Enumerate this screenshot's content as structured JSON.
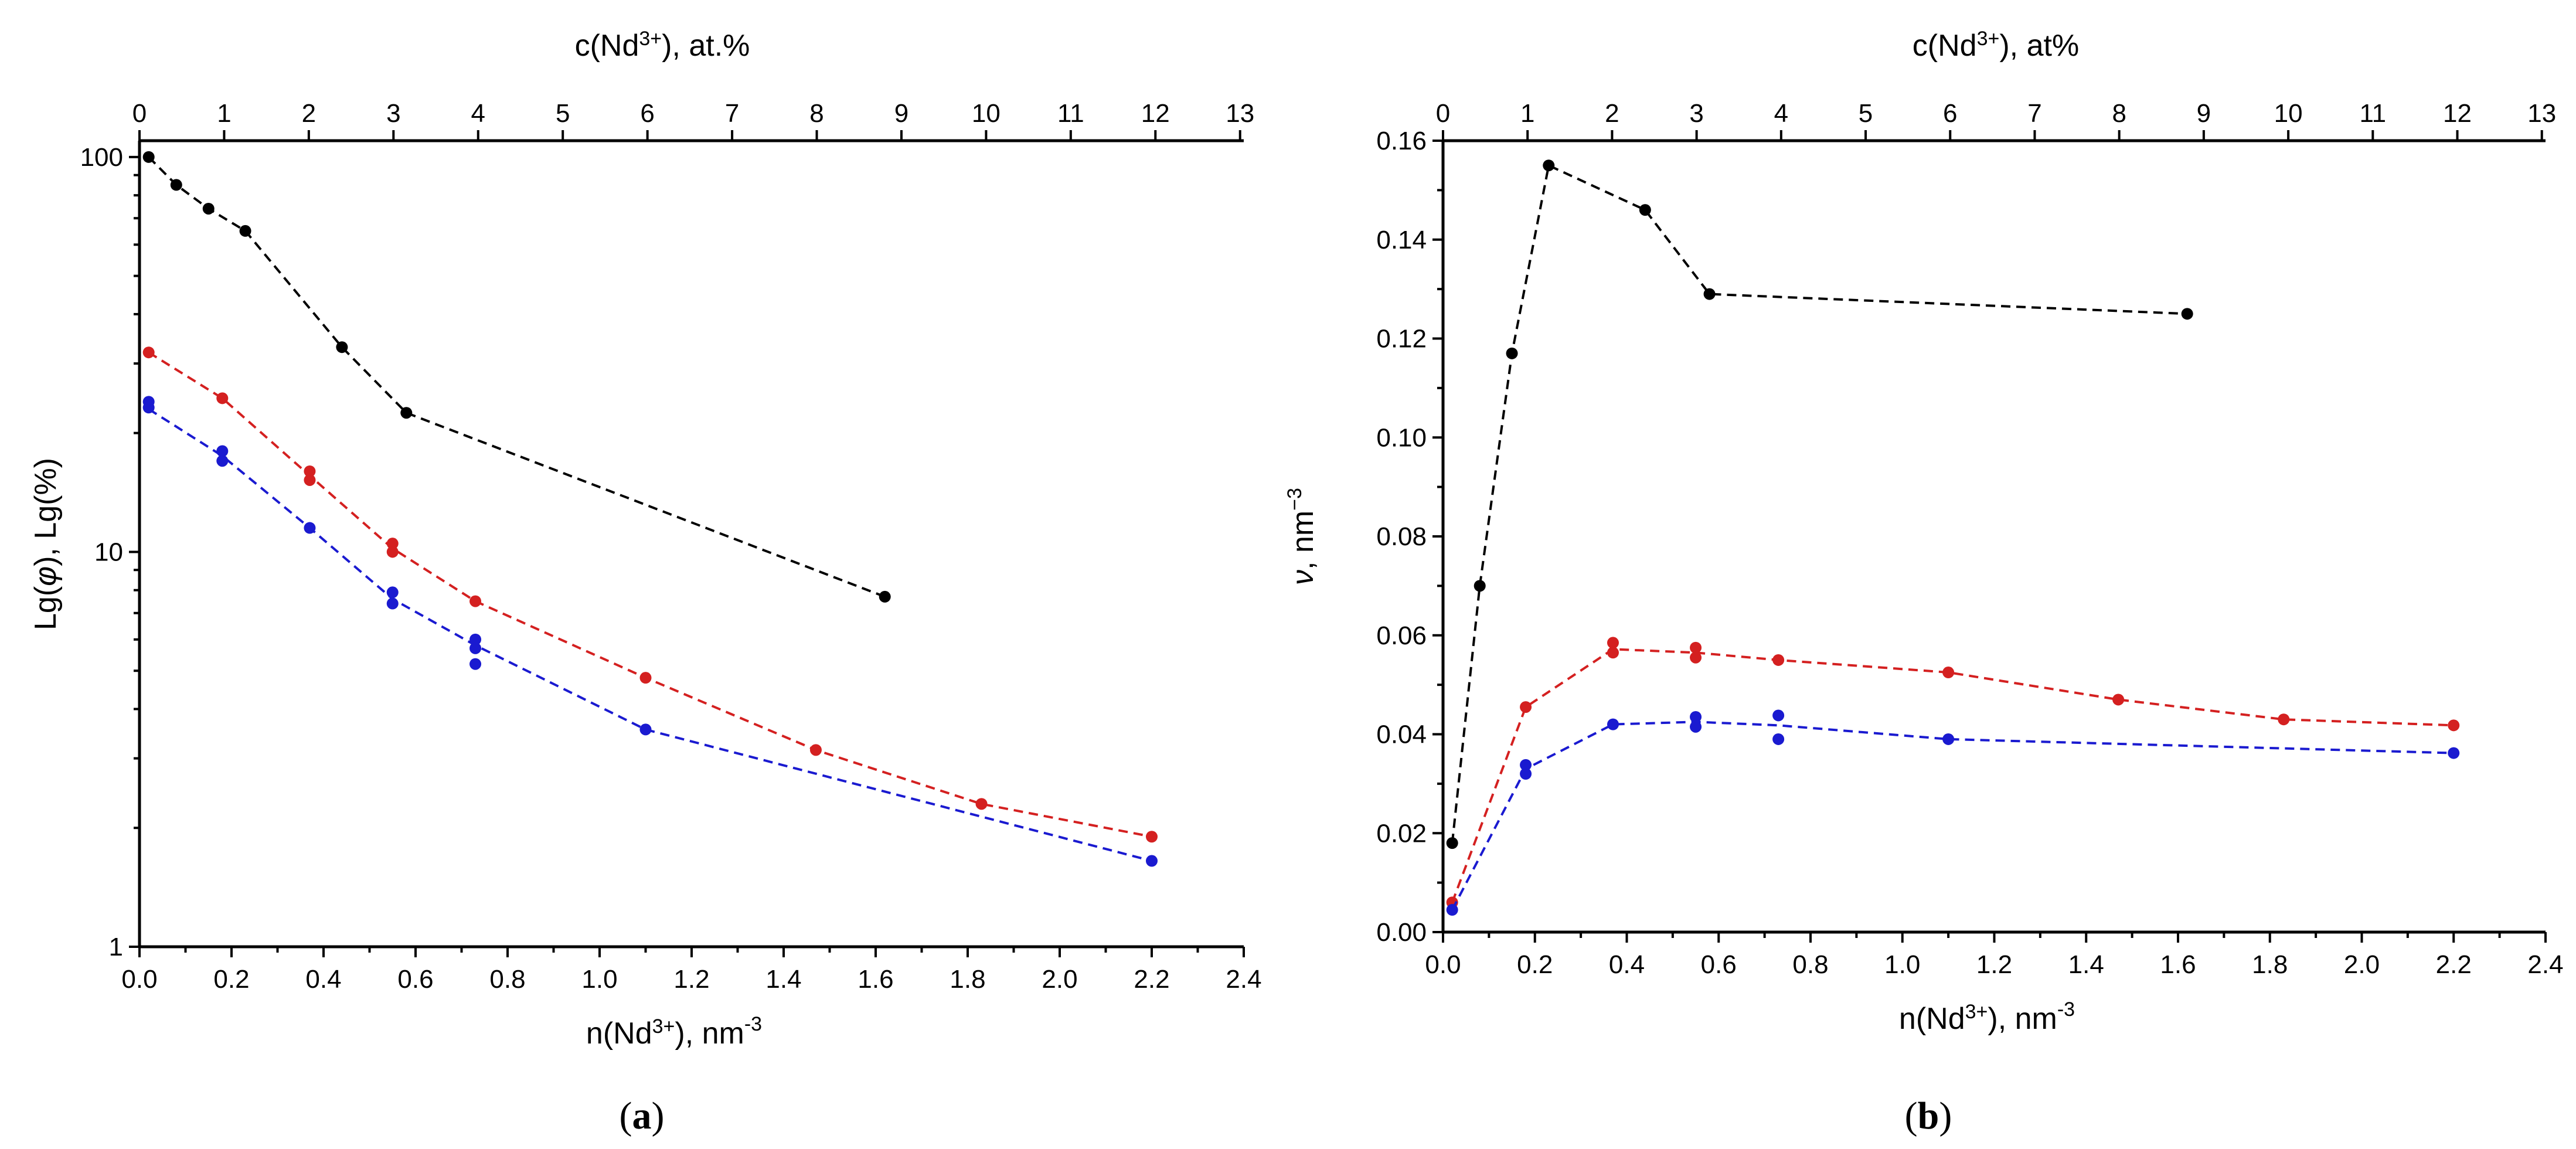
{
  "chart_data": [
    {
      "type": "scatter",
      "panel_label": "(a)",
      "panel_letter": "a",
      "xlabel": "n(Nd3+), nm-3",
      "xlabel_parts": {
        "main": "n(Nd",
        "sup": "3+",
        "tail": "), nm",
        "exp": "-3"
      },
      "ylabel": "Lg(φ), Lg(%)",
      "ylabel_parts": {
        "pre": "Lg(",
        "phi": "φ",
        "post": "), Lg(%)"
      },
      "top_label": "c(Nd3+), at.%",
      "top_label_parts": {
        "main": "c(Nd",
        "sup": "3+",
        "tail": "), at.%"
      },
      "yscale": "log",
      "xlim": [
        0,
        2.4
      ],
      "ylim": [
        1,
        110
      ],
      "x_ticks": [
        0.0,
        0.2,
        0.4,
        0.6,
        0.8,
        1.0,
        1.2,
        1.4,
        1.6,
        1.8,
        2.0,
        2.2,
        2.4
      ],
      "x_tick_labels": [
        "0.0",
        "0.2",
        "0.4",
        "0.6",
        "0.8",
        "1.0",
        "1.2",
        "1.4",
        "1.6",
        "1.8",
        "2.0",
        "2.2",
        "2.4"
      ],
      "y_ticks": [
        1,
        10,
        100
      ],
      "y_tick_labels": [
        "1",
        "10",
        "100"
      ],
      "top_ticks": [
        0,
        1,
        2,
        3,
        4,
        5,
        6,
        7,
        8,
        9,
        10,
        11,
        12,
        13
      ],
      "top_tick_labels": [
        "0",
        "1",
        "2",
        "3",
        "4",
        "5",
        "6",
        "7",
        "8",
        "9",
        "10",
        "11",
        "12",
        "13"
      ],
      "top_axis_factor": 0.184,
      "series": [
        {
          "name": "black",
          "color": "#000000",
          "points": [
            [
              0.02,
              100
            ],
            [
              0.08,
              85
            ],
            [
              0.15,
              74
            ],
            [
              0.23,
              65
            ],
            [
              0.44,
              33
            ],
            [
              0.58,
              22.5
            ],
            [
              1.62,
              7.7
            ]
          ],
          "line": [
            [
              0.02,
              100
            ],
            [
              0.08,
              85
            ],
            [
              0.15,
              74
            ],
            [
              0.23,
              65
            ],
            [
              0.44,
              33
            ],
            [
              0.58,
              22.5
            ],
            [
              1.62,
              7.7
            ]
          ]
        },
        {
          "name": "red",
          "color": "#d42020",
          "points": [
            [
              0.02,
              32
            ],
            [
              0.18,
              24.5
            ],
            [
              0.37,
              16
            ],
            [
              0.37,
              15.2
            ],
            [
              0.55,
              10.5
            ],
            [
              0.55,
              10.0
            ],
            [
              0.73,
              7.5
            ],
            [
              1.1,
              4.8
            ],
            [
              1.47,
              3.15
            ],
            [
              1.83,
              2.3
            ],
            [
              2.2,
              1.9
            ]
          ],
          "line": [
            [
              0.02,
              32
            ],
            [
              0.18,
              24.5
            ],
            [
              0.37,
              15.6
            ],
            [
              0.55,
              10.2
            ],
            [
              0.73,
              7.5
            ],
            [
              1.1,
              4.8
            ],
            [
              1.47,
              3.15
            ],
            [
              1.83,
              2.3
            ],
            [
              2.2,
              1.9
            ]
          ]
        },
        {
          "name": "blue",
          "color": "#1a1ad0",
          "points": [
            [
              0.02,
              24
            ],
            [
              0.02,
              23.2
            ],
            [
              0.18,
              18
            ],
            [
              0.18,
              17
            ],
            [
              0.37,
              11.5
            ],
            [
              0.55,
              7.9
            ],
            [
              0.55,
              7.4
            ],
            [
              0.73,
              6.0
            ],
            [
              0.73,
              5.7
            ],
            [
              0.73,
              5.2
            ],
            [
              1.1,
              3.55
            ],
            [
              2.2,
              1.65
            ]
          ],
          "line": [
            [
              0.02,
              23
            ],
            [
              0.18,
              17.5
            ],
            [
              0.37,
              11.5
            ],
            [
              0.55,
              7.6
            ],
            [
              0.73,
              5.8
            ],
            [
              1.1,
              3.55
            ],
            [
              2.2,
              1.65
            ]
          ]
        }
      ]
    },
    {
      "type": "scatter",
      "panel_label": "(b)",
      "panel_letter": "b",
      "xlabel": "n(Nd3+), nm-3",
      "xlabel_parts": {
        "main": "n(Nd",
        "sup": "3+",
        "tail": "), nm",
        "exp": "-3"
      },
      "ylabel": "ν, nm-3",
      "ylabel_parts": {
        "nu": "ν",
        "post": ", nm",
        "exp": "−3"
      },
      "top_label": "c(Nd3+), at%",
      "top_label_parts": {
        "main": "c(Nd",
        "sup": "3+",
        "tail": "), at%"
      },
      "yscale": "linear",
      "xlim": [
        0,
        2.4
      ],
      "ylim": [
        0,
        0.16
      ],
      "x_ticks": [
        0.0,
        0.2,
        0.4,
        0.6,
        0.8,
        1.0,
        1.2,
        1.4,
        1.6,
        1.8,
        2.0,
        2.2,
        2.4
      ],
      "x_tick_labels": [
        "0.0",
        "0.2",
        "0.4",
        "0.6",
        "0.8",
        "1.0",
        "1.2",
        "1.4",
        "1.6",
        "1.8",
        "2.0",
        "2.2",
        "2.4"
      ],
      "y_ticks": [
        0.0,
        0.02,
        0.04,
        0.06,
        0.08,
        0.1,
        0.12,
        0.14,
        0.16
      ],
      "y_tick_labels": [
        "0.00",
        "0.02",
        "0.04",
        "0.06",
        "0.08",
        "0.10",
        "0.12",
        "0.14",
        "0.16"
      ],
      "top_ticks": [
        0,
        1,
        2,
        3,
        4,
        5,
        6,
        7,
        8,
        9,
        10,
        11,
        12,
        13
      ],
      "top_tick_labels": [
        "0",
        "1",
        "2",
        "3",
        "4",
        "5",
        "6",
        "7",
        "8",
        "9",
        "10",
        "11",
        "12",
        "13"
      ],
      "top_axis_factor": 0.184,
      "series": [
        {
          "name": "black",
          "color": "#000000",
          "points": [
            [
              0.02,
              0.018
            ],
            [
              0.08,
              0.07
            ],
            [
              0.15,
              0.117
            ],
            [
              0.23,
              0.155
            ],
            [
              0.44,
              0.146
            ],
            [
              0.58,
              0.129
            ],
            [
              1.62,
              0.125
            ]
          ],
          "line": [
            [
              0.02,
              0.018
            ],
            [
              0.08,
              0.07
            ],
            [
              0.15,
              0.117
            ],
            [
              0.23,
              0.155
            ],
            [
              0.44,
              0.146
            ],
            [
              0.58,
              0.129
            ],
            [
              1.62,
              0.125
            ]
          ]
        },
        {
          "name": "red",
          "color": "#d42020",
          "points": [
            [
              0.02,
              0.006
            ],
            [
              0.18,
              0.0455
            ],
            [
              0.37,
              0.0585
            ],
            [
              0.37,
              0.0565
            ],
            [
              0.55,
              0.0575
            ],
            [
              0.55,
              0.0555
            ],
            [
              0.73,
              0.055
            ],
            [
              1.1,
              0.0525
            ],
            [
              1.47,
              0.047
            ],
            [
              1.83,
              0.043
            ],
            [
              2.2,
              0.0418
            ]
          ],
          "line": [
            [
              0.02,
              0.006
            ],
            [
              0.18,
              0.0455
            ],
            [
              0.37,
              0.0572
            ],
            [
              0.55,
              0.0565
            ],
            [
              0.73,
              0.055
            ],
            [
              1.1,
              0.0525
            ],
            [
              1.47,
              0.047
            ],
            [
              1.83,
              0.043
            ],
            [
              2.2,
              0.0418
            ]
          ]
        },
        {
          "name": "blue",
          "color": "#1a1ad0",
          "points": [
            [
              0.02,
              0.0045
            ],
            [
              0.18,
              0.0338
            ],
            [
              0.18,
              0.032
            ],
            [
              0.37,
              0.042
            ],
            [
              0.55,
              0.0435
            ],
            [
              0.55,
              0.0415
            ],
            [
              0.73,
              0.0438
            ],
            [
              0.73,
              0.039
            ],
            [
              1.1,
              0.039
            ],
            [
              2.2,
              0.0362
            ]
          ],
          "line": [
            [
              0.02,
              0.0045
            ],
            [
              0.18,
              0.033
            ],
            [
              0.37,
              0.042
            ],
            [
              0.55,
              0.0425
            ],
            [
              0.73,
              0.0418
            ],
            [
              1.1,
              0.039
            ],
            [
              2.2,
              0.0362
            ]
          ]
        }
      ]
    }
  ]
}
